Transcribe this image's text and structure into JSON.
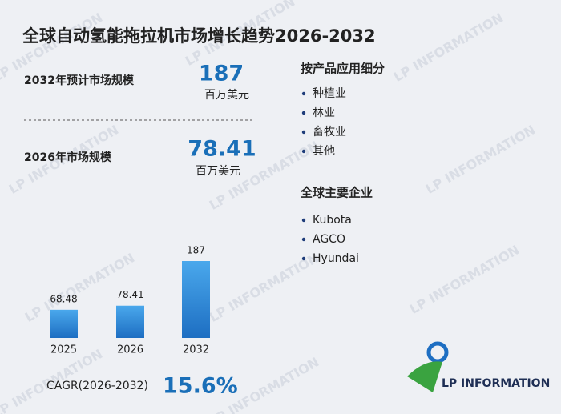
{
  "title": "全球自动氢能拖拉机市场增长趋势2026-2032",
  "kpis": [
    {
      "label": "2032年预计市场规模",
      "value": 187,
      "unit": "百万美元"
    },
    {
      "label": "2026年市场规模",
      "value": 78.41,
      "unit": "百万美元"
    }
  ],
  "segments": {
    "title": "按产品应用细分",
    "items": [
      "种植业",
      "林业",
      "畜牧业",
      "其他"
    ]
  },
  "companies": {
    "title": "全球主要企业",
    "items": [
      "Kubota",
      "AGCO",
      "Hyundai"
    ]
  },
  "chart_data": {
    "type": "bar",
    "categories": [
      "2025",
      "2026",
      "2032"
    ],
    "values": [
      68.48,
      78.41,
      187
    ],
    "color": "#2a86d6"
  },
  "cagr": {
    "label": "CAGR(2026-2032)",
    "value": "15.6%"
  },
  "logo": "LP INFORMATION",
  "watermark": "LP INFORMATION"
}
